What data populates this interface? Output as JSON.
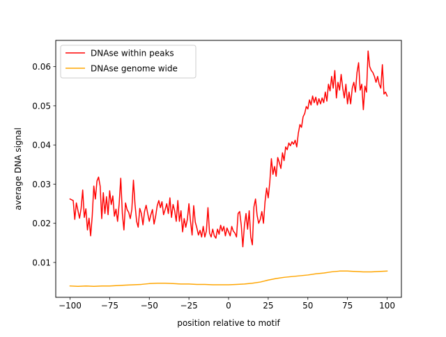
{
  "chart_data": {
    "type": "line",
    "title": "",
    "xlabel": "position relative to motif",
    "ylabel": "average DNA signal",
    "xlim": [
      -109,
      109
    ],
    "ylim": [
      0.0011,
      0.0667
    ],
    "xticks": [
      -100,
      -75,
      -50,
      -25,
      0,
      25,
      50,
      75,
      100
    ],
    "xtick_labels": [
      "−100",
      "−75",
      "−50",
      "−25",
      "0",
      "25",
      "50",
      "75",
      "100"
    ],
    "yticks": [
      0.01,
      0.02,
      0.03,
      0.04,
      0.05,
      0.06
    ],
    "ytick_labels": [
      "0.01",
      "0.02",
      "0.03",
      "0.04",
      "0.05",
      "0.06"
    ],
    "grid": false,
    "legend_position": "top-left",
    "series": [
      {
        "name": "DNAse within peaks",
        "color": "#ff0000",
        "points": [
          [
            -100,
            0.0262
          ],
          [
            -98,
            0.0258
          ],
          [
            -97,
            0.021
          ],
          [
            -96,
            0.0252
          ],
          [
            -94,
            0.0213
          ],
          [
            -93,
            0.0238
          ],
          [
            -92,
            0.0285
          ],
          [
            -91,
            0.0215
          ],
          [
            -90,
            0.0237
          ],
          [
            -89,
            0.0183
          ],
          [
            -88,
            0.0213
          ],
          [
            -87,
            0.0168
          ],
          [
            -86,
            0.0218
          ],
          [
            -85,
            0.0295
          ],
          [
            -84,
            0.0262
          ],
          [
            -83,
            0.0308
          ],
          [
            -82,
            0.0318
          ],
          [
            -81,
            0.0295
          ],
          [
            -80,
            0.0212
          ],
          [
            -79,
            0.0278
          ],
          [
            -78,
            0.0225
          ],
          [
            -77,
            0.0268
          ],
          [
            -76,
            0.0222
          ],
          [
            -75,
            0.0283
          ],
          [
            -74,
            0.0248
          ],
          [
            -73,
            0.027
          ],
          [
            -72,
            0.0218
          ],
          [
            -71,
            0.0236
          ],
          [
            -70,
            0.0205
          ],
          [
            -69,
            0.025
          ],
          [
            -68,
            0.0315
          ],
          [
            -67,
            0.0225
          ],
          [
            -66,
            0.0183
          ],
          [
            -65,
            0.0252
          ],
          [
            -64,
            0.0235
          ],
          [
            -63,
            0.0228
          ],
          [
            -62,
            0.0212
          ],
          [
            -61,
            0.0236
          ],
          [
            -60,
            0.031
          ],
          [
            -59,
            0.0248
          ],
          [
            -58,
            0.0205
          ],
          [
            -57,
            0.019
          ],
          [
            -56,
            0.0238
          ],
          [
            -55,
            0.0225
          ],
          [
            -54,
            0.0196
          ],
          [
            -53,
            0.023
          ],
          [
            -52,
            0.0246
          ],
          [
            -51,
            0.0225
          ],
          [
            -50,
            0.0205
          ],
          [
            -49,
            0.0222
          ],
          [
            -48,
            0.0235
          ],
          [
            -47,
            0.0198
          ],
          [
            -46,
            0.0218
          ],
          [
            -45,
            0.0245
          ],
          [
            -44,
            0.0258
          ],
          [
            -43,
            0.024
          ],
          [
            -42,
            0.0255
          ],
          [
            -41,
            0.0222
          ],
          [
            -40,
            0.0235
          ],
          [
            -39,
            0.025
          ],
          [
            -38,
            0.0225
          ],
          [
            -37,
            0.0265
          ],
          [
            -36,
            0.0215
          ],
          [
            -35,
            0.0248
          ],
          [
            -34,
            0.0232
          ],
          [
            -33,
            0.0205
          ],
          [
            -32,
            0.0258
          ],
          [
            -31,
            0.0205
          ],
          [
            -30,
            0.0232
          ],
          [
            -29,
            0.0178
          ],
          [
            -28,
            0.0212
          ],
          [
            -27,
            0.019
          ],
          [
            -26,
            0.021
          ],
          [
            -25,
            0.025
          ],
          [
            -24,
            0.0205
          ],
          [
            -23,
            0.017
          ],
          [
            -22,
            0.0245
          ],
          [
            -21,
            0.0203
          ],
          [
            -20,
            0.0188
          ],
          [
            -19,
            0.017
          ],
          [
            -18,
            0.0182
          ],
          [
            -17,
            0.0165
          ],
          [
            -16,
            0.0192
          ],
          [
            -15,
            0.0165
          ],
          [
            -14,
            0.018
          ],
          [
            -13,
            0.024
          ],
          [
            -12,
            0.0175
          ],
          [
            -11,
            0.0165
          ],
          [
            -10,
            0.0185
          ],
          [
            -9,
            0.0168
          ],
          [
            -8,
            0.0162
          ],
          [
            -7,
            0.0185
          ],
          [
            -6,
            0.0172
          ],
          [
            -5,
            0.0195
          ],
          [
            -4,
            0.018
          ],
          [
            -3,
            0.0192
          ],
          [
            -2,
            0.0168
          ],
          [
            -1,
            0.0188
          ],
          [
            0,
            0.0178
          ],
          [
            1,
            0.0168
          ],
          [
            2,
            0.0192
          ],
          [
            3,
            0.018
          ],
          [
            4,
            0.0175
          ],
          [
            5,
            0.0165
          ],
          [
            6,
            0.0225
          ],
          [
            7,
            0.023
          ],
          [
            8,
            0.0195
          ],
          [
            9,
            0.014
          ],
          [
            10,
            0.0195
          ],
          [
            11,
            0.0225
          ],
          [
            12,
            0.0185
          ],
          [
            13,
            0.0232
          ],
          [
            14,
            0.0165
          ],
          [
            15,
            0.0145
          ],
          [
            16,
            0.0242
          ],
          [
            17,
            0.0262
          ],
          [
            18,
            0.022
          ],
          [
            19,
            0.02
          ],
          [
            20,
            0.021
          ],
          [
            21,
            0.023
          ],
          [
            22,
            0.02
          ],
          [
            23,
            0.0255
          ],
          [
            24,
            0.029
          ],
          [
            25,
            0.0265
          ],
          [
            26,
            0.0305
          ],
          [
            27,
            0.0365
          ],
          [
            28,
            0.0325
          ],
          [
            29,
            0.0345
          ],
          [
            30,
            0.032
          ],
          [
            31,
            0.0368
          ],
          [
            32,
            0.0355
          ],
          [
            33,
            0.034
          ],
          [
            34,
            0.038
          ],
          [
            35,
            0.036
          ],
          [
            36,
            0.0395
          ],
          [
            37,
            0.0388
          ],
          [
            38,
            0.0405
          ],
          [
            39,
            0.0398
          ],
          [
            40,
            0.0408
          ],
          [
            41,
            0.0402
          ],
          [
            42,
            0.0412
          ],
          [
            43,
            0.0395
          ],
          [
            44,
            0.043
          ],
          [
            45,
            0.0452
          ],
          [
            46,
            0.0445
          ],
          [
            47,
            0.0472
          ],
          [
            48,
            0.048
          ],
          [
            49,
            0.0498
          ],
          [
            50,
            0.0492
          ],
          [
            51,
            0.0515
          ],
          [
            52,
            0.0502
          ],
          [
            53,
            0.0525
          ],
          [
            54,
            0.0508
          ],
          [
            55,
            0.0522
          ],
          [
            56,
            0.0502
          ],
          [
            57,
            0.0518
          ],
          [
            58,
            0.0505
          ],
          [
            59,
            0.052
          ],
          [
            60,
            0.0508
          ],
          [
            61,
            0.0535
          ],
          [
            62,
            0.0512
          ],
          [
            63,
            0.0555
          ],
          [
            64,
            0.0538
          ],
          [
            65,
            0.0575
          ],
          [
            66,
            0.0545
          ],
          [
            67,
            0.059
          ],
          [
            68,
            0.052
          ],
          [
            69,
            0.056
          ],
          [
            70,
            0.054
          ],
          [
            71,
            0.058
          ],
          [
            72,
            0.0545
          ],
          [
            73,
            0.052
          ],
          [
            74,
            0.0555
          ],
          [
            75,
            0.0505
          ],
          [
            76,
            0.0535
          ],
          [
            77,
            0.0505
          ],
          [
            78,
            0.0545
          ],
          [
            79,
            0.056
          ],
          [
            80,
            0.0535
          ],
          [
            81,
            0.0585
          ],
          [
            82,
            0.061
          ],
          [
            83,
            0.054
          ],
          [
            84,
            0.0555
          ],
          [
            85,
            0.049
          ],
          [
            86,
            0.055
          ],
          [
            87,
            0.0535
          ],
          [
            88,
            0.064
          ],
          [
            89,
            0.06
          ],
          [
            90,
            0.059
          ],
          [
            91,
            0.0585
          ],
          [
            92,
            0.0575
          ],
          [
            93,
            0.056
          ],
          [
            94,
            0.0575
          ],
          [
            95,
            0.0555
          ],
          [
            96,
            0.0545
          ],
          [
            97,
            0.0605
          ],
          [
            98,
            0.053
          ],
          [
            99,
            0.0535
          ],
          [
            100,
            0.0525
          ]
        ]
      },
      {
        "name": "DNAse genome wide",
        "color": "#ffa500",
        "points": [
          [
            -100,
            0.004
          ],
          [
            -95,
            0.0039
          ],
          [
            -90,
            0.004
          ],
          [
            -85,
            0.0039
          ],
          [
            -80,
            0.004
          ],
          [
            -75,
            0.004
          ],
          [
            -70,
            0.0041
          ],
          [
            -65,
            0.0042
          ],
          [
            -60,
            0.0043
          ],
          [
            -55,
            0.0044
          ],
          [
            -50,
            0.0046
          ],
          [
            -45,
            0.0047
          ],
          [
            -40,
            0.0047
          ],
          [
            -35,
            0.0046
          ],
          [
            -30,
            0.0045
          ],
          [
            -25,
            0.0045
          ],
          [
            -20,
            0.0044
          ],
          [
            -15,
            0.0044
          ],
          [
            -10,
            0.0043
          ],
          [
            -5,
            0.0043
          ],
          [
            0,
            0.0043
          ],
          [
            5,
            0.0044
          ],
          [
            10,
            0.0045
          ],
          [
            15,
            0.0047
          ],
          [
            20,
            0.005
          ],
          [
            25,
            0.0055
          ],
          [
            30,
            0.0059
          ],
          [
            35,
            0.0062
          ],
          [
            40,
            0.0064
          ],
          [
            45,
            0.0066
          ],
          [
            50,
            0.0068
          ],
          [
            55,
            0.0071
          ],
          [
            60,
            0.0073
          ],
          [
            65,
            0.0076
          ],
          [
            70,
            0.0078
          ],
          [
            75,
            0.0078
          ],
          [
            80,
            0.0077
          ],
          [
            85,
            0.0076
          ],
          [
            90,
            0.0076
          ],
          [
            95,
            0.0077
          ],
          [
            100,
            0.0078
          ]
        ]
      }
    ]
  }
}
